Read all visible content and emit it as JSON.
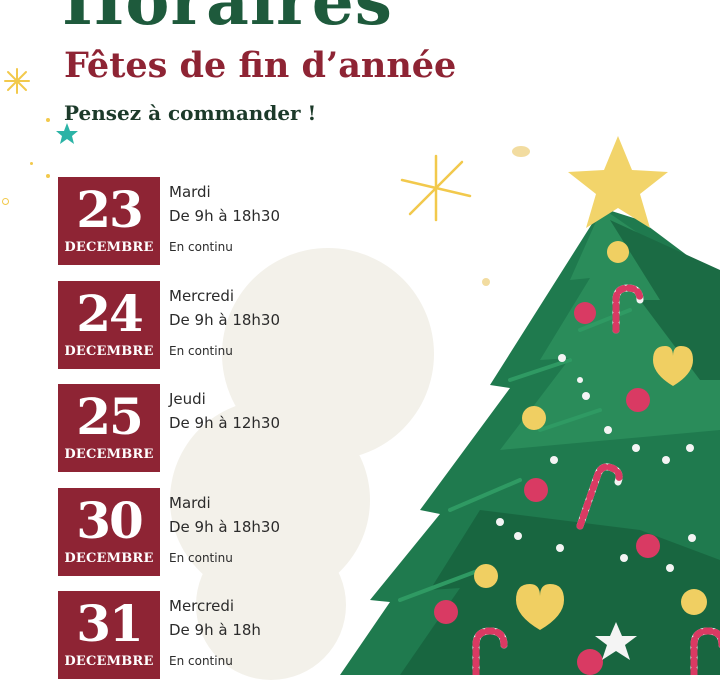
{
  "header": {
    "title": "Horaires",
    "subtitle": "Fêtes de fin d’année",
    "reminder": "Pensez à commander !"
  },
  "days": [
    {
      "date": "23",
      "month": "DECEMBRE",
      "weekday": "Mardi",
      "hours": "De 9h à 18h30",
      "note": "En continu"
    },
    {
      "date": "24",
      "month": "DECEMBRE",
      "weekday": "Mercredi",
      "hours": "De 9h à 18h30",
      "note": "En continu"
    },
    {
      "date": "25",
      "month": "DECEMBRE",
      "weekday": "Jeudi",
      "hours": "De 9h à 12h30",
      "note": ""
    },
    {
      "date": "30",
      "month": "DECEMBRE",
      "weekday": "Mardi",
      "hours": "De 9h à 18h30",
      "note": "En continu"
    },
    {
      "date": "31",
      "month": "DECEMBRE",
      "weekday": "Mercredi",
      "hours": "De 9h à 18h",
      "note": "En continu"
    }
  ],
  "colors": {
    "title_green": "#1e5a3c",
    "accent_red": "#8e2434",
    "tree_green": "#1f7a4e",
    "star_gold": "#f2c94c"
  }
}
